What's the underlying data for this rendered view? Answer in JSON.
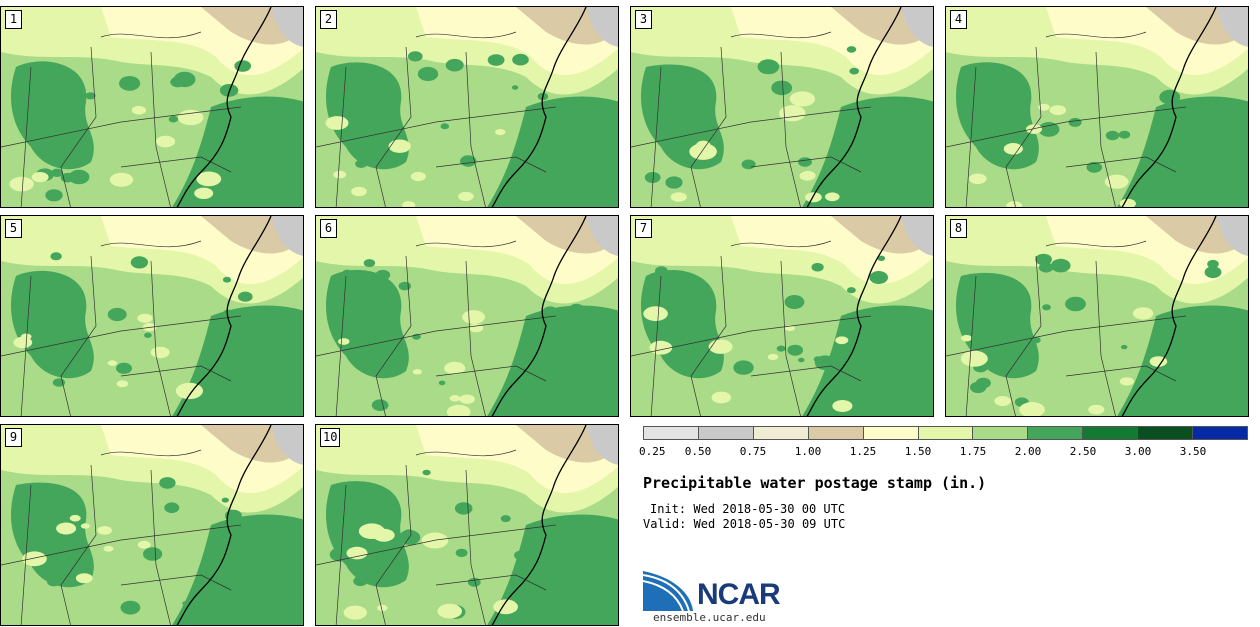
{
  "panels": [
    {
      "label": "1"
    },
    {
      "label": "2"
    },
    {
      "label": "3"
    },
    {
      "label": "4"
    },
    {
      "label": "5"
    },
    {
      "label": "6"
    },
    {
      "label": "7"
    },
    {
      "label": "8"
    },
    {
      "label": "9"
    },
    {
      "label": "10"
    }
  ],
  "legend": {
    "colors": [
      "#e3e3e3",
      "#c9c9c9",
      "#f0ecd4",
      "#dbcaa6",
      "#fefdc9",
      "#e3f6a9",
      "#a9db88",
      "#44a65a",
      "#137a34",
      "#0a4f1f",
      "#0629a6"
    ],
    "ticks": [
      "0.25",
      "0.50",
      "0.75",
      "1.00",
      "1.25",
      "1.50",
      "1.75",
      "2.00",
      "2.50",
      "3.00",
      "3.50"
    ]
  },
  "title": "Precipitable water postage stamp (in.)",
  "init": "Init: Wed 2018-05-30 00 UTC",
  "valid": "Valid: Wed 2018-05-30 09 UTC",
  "logo": {
    "name": "NCAR",
    "url": "ensemble.ucar.edu"
  }
}
